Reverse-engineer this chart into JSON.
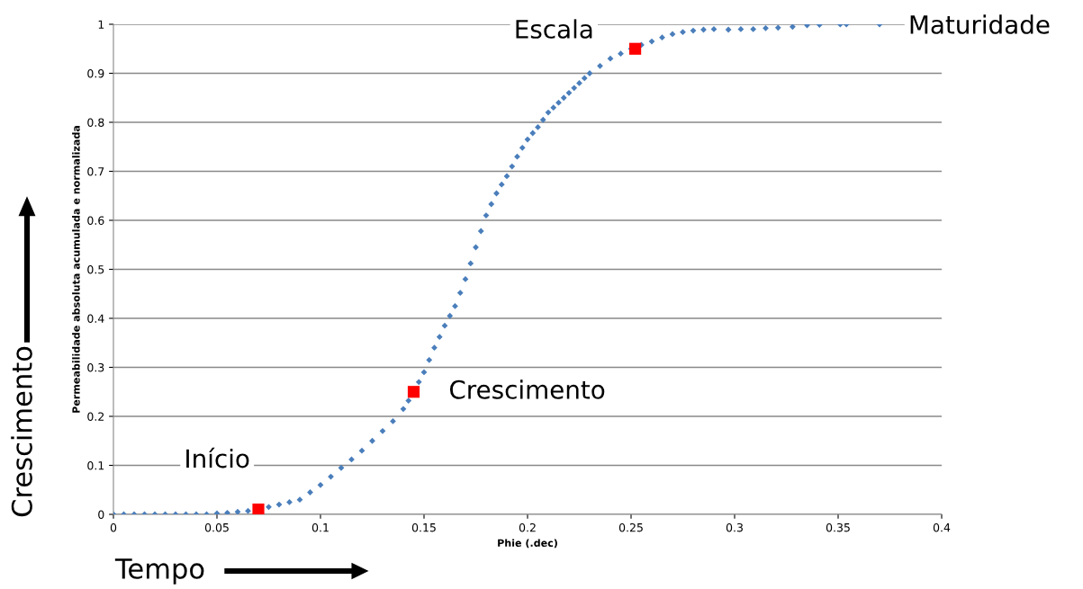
{
  "chart_data": {
    "type": "scatter",
    "xlabel": "Phie (.dec)",
    "ylabel": "Permeabilidade absoluta acumulada e normalizada",
    "xlim": [
      0,
      0.4
    ],
    "ylim": [
      0,
      1
    ],
    "xticks": [
      0,
      0.05,
      0.1,
      0.15,
      0.2,
      0.25,
      0.3,
      0.35,
      0.4
    ],
    "yticks": [
      0,
      0.1,
      0.2,
      0.3,
      0.4,
      0.5,
      0.6,
      0.7,
      0.8,
      0.9,
      1
    ],
    "grid": "y",
    "marker": "diamond",
    "series": [
      {
        "color": "#4a7ebb",
        "x": [
          0,
          0.005,
          0.01,
          0.015,
          0.02,
          0.025,
          0.03,
          0.035,
          0.04,
          0.045,
          0.05,
          0.055,
          0.06,
          0.065,
          0.075,
          0.08,
          0.085,
          0.09,
          0.095,
          0.1,
          0.105,
          0.11,
          0.115,
          0.12,
          0.125,
          0.13,
          0.135,
          0.14,
          0.1425,
          0.1475,
          0.15,
          0.1525,
          0.155,
          0.1575,
          0.16,
          0.1625,
          0.165,
          0.1675,
          0.17,
          0.1725,
          0.175,
          0.1775,
          0.18,
          0.1825,
          0.185,
          0.1875,
          0.19,
          0.1925,
          0.195,
          0.1975,
          0.2,
          0.2025,
          0.205,
          0.2075,
          0.21,
          0.2125,
          0.215,
          0.2175,
          0.22,
          0.2225,
          0.225,
          0.2275,
          0.23,
          0.235,
          0.24,
          0.245,
          0.25,
          0.255,
          0.26,
          0.265,
          0.27,
          0.275,
          0.28,
          0.285,
          0.29,
          0.297,
          0.303,
          0.309,
          0.315,
          0.321,
          0.328,
          0.335,
          0.341,
          0.351,
          0.354,
          0.37
        ],
        "values": [
          0,
          0,
          0,
          0,
          0,
          0,
          0,
          0,
          0,
          0,
          0.002,
          0.003,
          0.005,
          0.007,
          0.015,
          0.02,
          0.025,
          0.03,
          0.045,
          0.06,
          0.077,
          0.095,
          0.112,
          0.13,
          0.15,
          0.17,
          0.19,
          0.215,
          0.232,
          0.27,
          0.29,
          0.315,
          0.34,
          0.362,
          0.385,
          0.405,
          0.425,
          0.452,
          0.48,
          0.512,
          0.545,
          0.578,
          0.61,
          0.633,
          0.655,
          0.673,
          0.69,
          0.71,
          0.73,
          0.748,
          0.765,
          0.778,
          0.79,
          0.805,
          0.82,
          0.83,
          0.84,
          0.85,
          0.86,
          0.87,
          0.88,
          0.89,
          0.9,
          0.915,
          0.93,
          0.94,
          0.95,
          0.958,
          0.965,
          0.973,
          0.98,
          0.984,
          0.987,
          0.989,
          0.99,
          0.989,
          0.99,
          0.99,
          0.992,
          0.993,
          0.995,
          0.998,
          0.999,
          1,
          1,
          1
        ]
      },
      {
        "color": "#ff0000",
        "marker": "square",
        "x": [
          0.07,
          0.145,
          0.252
        ],
        "values": [
          0.01,
          0.25,
          0.95
        ]
      }
    ],
    "annotations": [
      {
        "text": "Início",
        "x": 0.07,
        "y": 0.01
      },
      {
        "text": "Crescimento",
        "x": 0.145,
        "y": 0.25
      },
      {
        "text": "Escala",
        "x": 0.252,
        "y": 0.95
      },
      {
        "text": "Maturidade",
        "x": 0.37,
        "y": 1
      },
      "Crescimento",
      "Tempo"
    ]
  }
}
